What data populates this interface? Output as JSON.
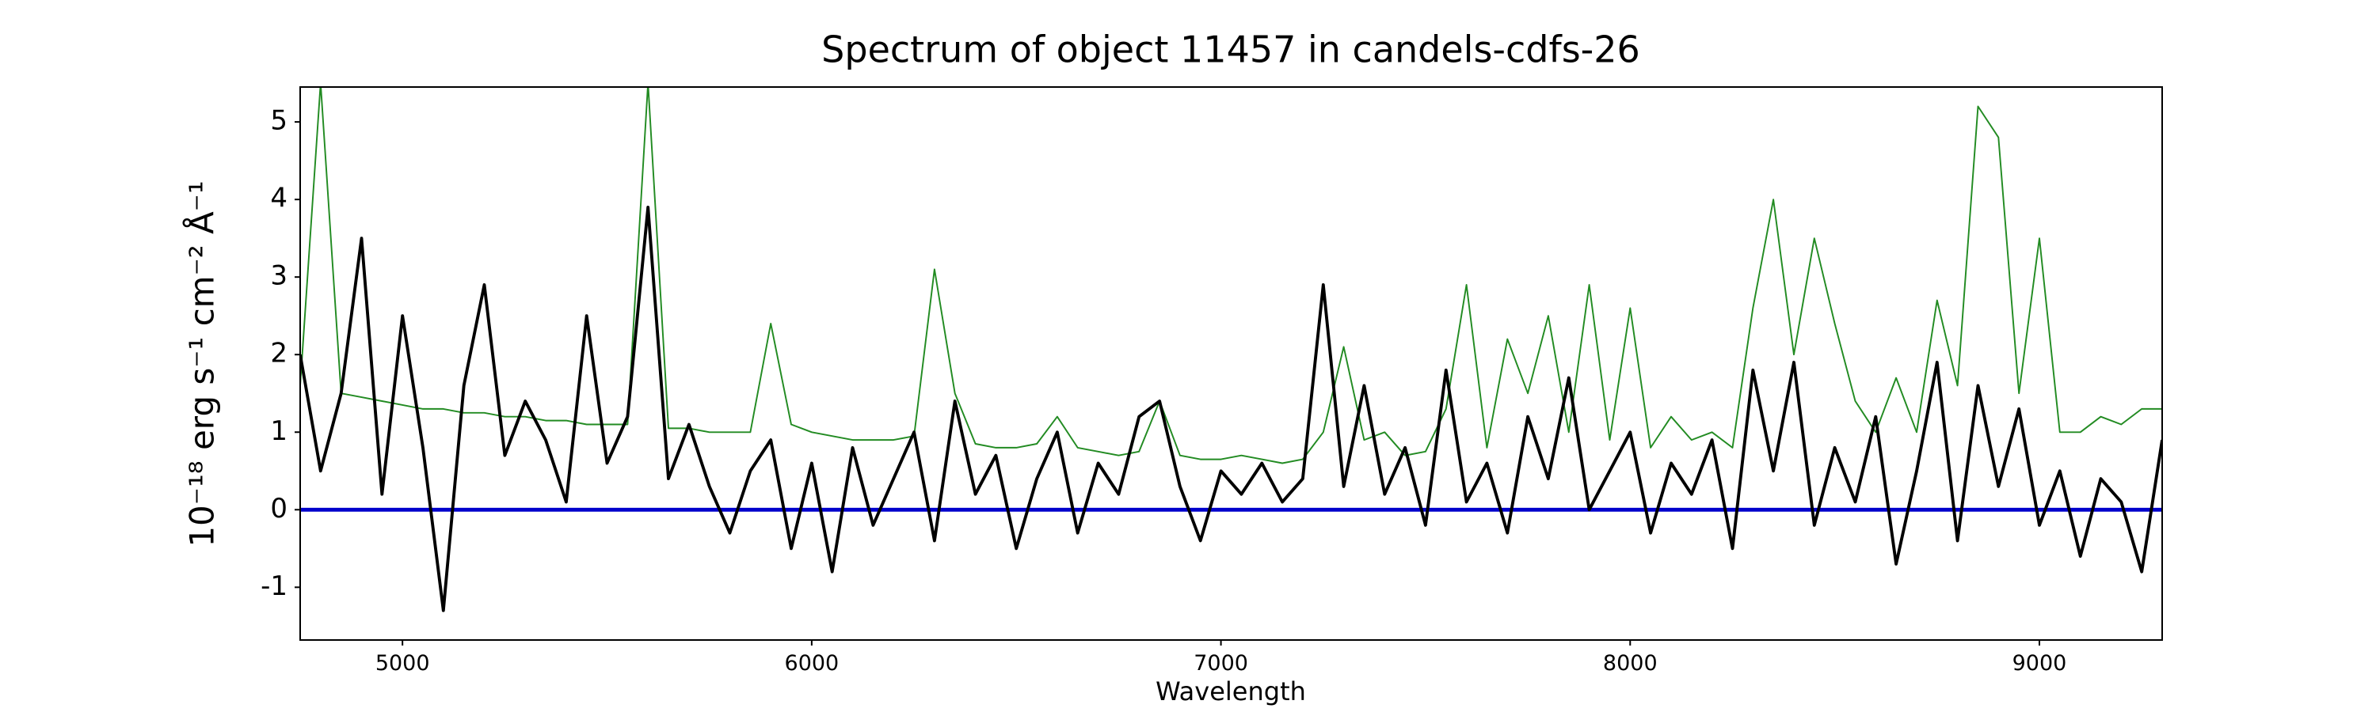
{
  "chart_data": {
    "type": "line",
    "title": "Spectrum of object 11457 in candels-cdfs-26",
    "xlabel": "Wavelength",
    "ylabel": "10⁻¹⁸ erg s⁻¹ cm⁻² Å⁻¹",
    "x": [
      4750,
      4800,
      4850,
      4900,
      4950,
      5000,
      5050,
      5100,
      5150,
      5200,
      5250,
      5300,
      5350,
      5400,
      5450,
      5500,
      5550,
      5600,
      5650,
      5700,
      5750,
      5800,
      5850,
      5900,
      5950,
      6000,
      6050,
      6100,
      6150,
      6200,
      6250,
      6300,
      6350,
      6400,
      6450,
      6500,
      6550,
      6600,
      6650,
      6700,
      6750,
      6800,
      6850,
      6900,
      6950,
      7000,
      7050,
      7100,
      7150,
      7200,
      7250,
      7300,
      7350,
      7400,
      7450,
      7500,
      7550,
      7600,
      7650,
      7700,
      7750,
      7800,
      7850,
      7900,
      7950,
      8000,
      8050,
      8100,
      8150,
      8200,
      8250,
      8300,
      8350,
      8400,
      8450,
      8500,
      8550,
      8600,
      8650,
      8700,
      8750,
      8800,
      8850,
      8900,
      8950,
      9000,
      9050,
      9100,
      9150,
      9200,
      9250,
      9300
    ],
    "series": [
      {
        "color": "#228b22",
        "width": 1,
        "values": [
          1.6,
          5.5,
          1.5,
          1.45,
          1.4,
          1.35,
          1.3,
          1.3,
          1.25,
          1.25,
          1.2,
          1.2,
          1.15,
          1.15,
          1.1,
          1.1,
          1.1,
          5.5,
          1.05,
          1.05,
          1.0,
          1.0,
          1.0,
          2.4,
          1.1,
          1.0,
          0.95,
          0.9,
          0.9,
          0.9,
          0.95,
          3.1,
          1.5,
          0.85,
          0.8,
          0.8,
          0.85,
          1.2,
          0.8,
          0.75,
          0.7,
          0.75,
          1.4,
          0.7,
          0.65,
          0.65,
          0.7,
          0.65,
          0.6,
          0.65,
          1.0,
          2.1,
          0.9,
          1.0,
          0.7,
          0.75,
          1.3,
          2.9,
          0.8,
          2.2,
          1.5,
          2.5,
          1.0,
          2.9,
          0.9,
          2.6,
          0.8,
          1.2,
          0.9,
          1.0,
          0.8,
          2.6,
          4.0,
          2.0,
          3.5,
          2.4,
          1.4,
          1.0,
          1.7,
          1.0,
          2.7,
          1.6,
          5.2,
          4.8,
          1.5,
          3.5,
          1.0,
          1.0,
          1.2,
          1.1,
          1.3,
          1.3
        ]
      },
      {
        "color": "#0000cc",
        "width": 2.5,
        "x": [
          4750,
          9300
        ],
        "values": [
          0,
          0
        ]
      },
      {
        "color": "#000000",
        "width": 2,
        "values": [
          2.0,
          0.5,
          1.5,
          3.5,
          0.2,
          2.5,
          0.8,
          -1.3,
          1.6,
          2.9,
          0.7,
          1.4,
          0.9,
          0.1,
          2.5,
          0.6,
          1.2,
          3.9,
          0.4,
          1.1,
          0.3,
          -0.3,
          0.5,
          0.9,
          -0.5,
          0.6,
          -0.8,
          0.8,
          -0.2,
          0.4,
          1.0,
          -0.4,
          1.4,
          0.2,
          0.7,
          -0.5,
          0.4,
          1.0,
          -0.3,
          0.6,
          0.2,
          1.2,
          1.4,
          0.3,
          -0.4,
          0.5,
          0.2,
          0.6,
          0.1,
          0.4,
          2.9,
          0.3,
          1.6,
          0.2,
          0.8,
          -0.2,
          1.8,
          0.1,
          0.6,
          -0.3,
          1.2,
          0.4,
          1.7,
          0.0,
          0.5,
          1.0,
          -0.3,
          0.6,
          0.2,
          0.9,
          -0.5,
          1.8,
          0.5,
          1.9,
          -0.2,
          0.8,
          0.1,
          1.2,
          -0.7,
          0.5,
          1.9,
          -0.4,
          1.6,
          0.3,
          1.3,
          -0.2,
          0.5,
          -0.6,
          0.4,
          0.1,
          -0.8,
          0.9
        ]
      }
    ],
    "xlim": [
      4750,
      9300
    ],
    "xticks": [
      5000,
      6000,
      7000,
      8000,
      9000
    ],
    "ylim": [
      -1.68,
      5.45
    ],
    "yticks": [
      -1,
      0,
      1,
      2,
      3,
      4,
      5
    ],
    "grid": false
  }
}
